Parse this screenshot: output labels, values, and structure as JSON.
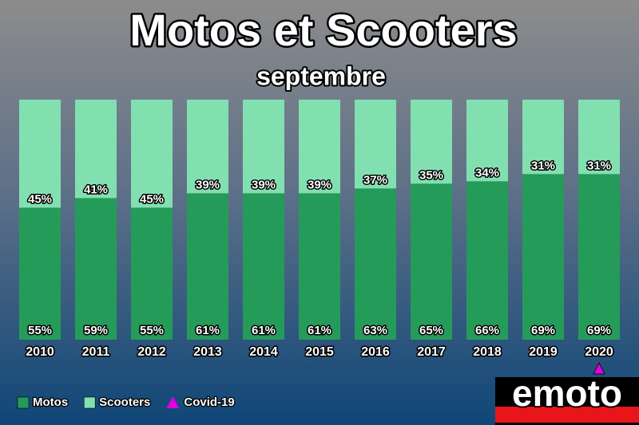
{
  "chart_data": {
    "type": "stacked_bar",
    "title": "Motos et Scooters",
    "subtitle": "septembre",
    "categories": [
      "2010",
      "2011",
      "2012",
      "2013",
      "2014",
      "2015",
      "2016",
      "2017",
      "2018",
      "2019",
      "2020"
    ],
    "series": [
      {
        "name": "Motos",
        "color": "#259b5a",
        "values": [
          55,
          59,
          55,
          61,
          61,
          61,
          63,
          65,
          66,
          69,
          69
        ],
        "value_labels": [
          "55%",
          "59%",
          "55%",
          "61%",
          "61%",
          "61%",
          "63%",
          "65%",
          "66%",
          "69%",
          "69%"
        ]
      },
      {
        "name": "Scooters",
        "color": "#82e0b0",
        "values": [
          45,
          41,
          45,
          39,
          39,
          39,
          37,
          35,
          34,
          31,
          31
        ],
        "value_labels": [
          "45%",
          "41%",
          "45%",
          "39%",
          "39%",
          "39%",
          "37%",
          "35%",
          "34%",
          "31%",
          "31%"
        ]
      }
    ],
    "ylim": [
      0,
      100
    ],
    "marker": {
      "label": "Covid-19",
      "category": "2020",
      "color": "#e000e0"
    },
    "logo": "emoto"
  }
}
